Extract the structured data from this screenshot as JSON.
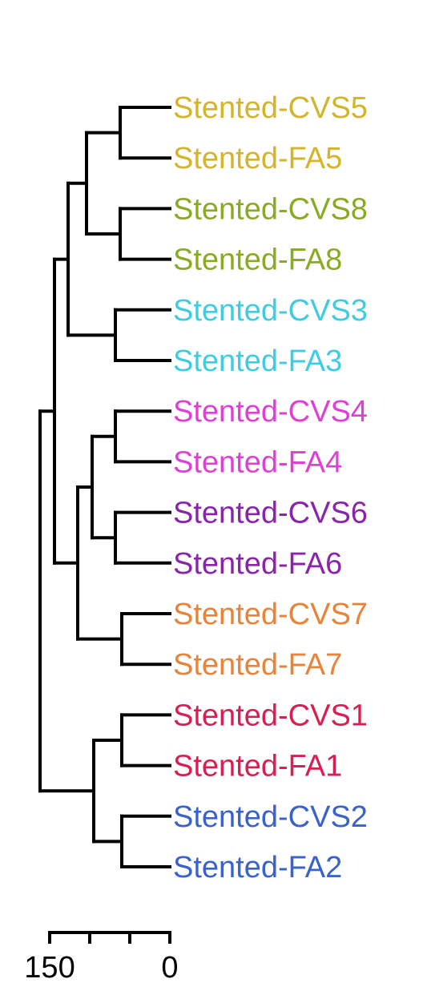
{
  "leaves": [
    {
      "label": "Stented-CVS5",
      "color": "#d4b42a"
    },
    {
      "label": "Stented-FA5",
      "color": "#d4b42a"
    },
    {
      "label": "Stented-CVS8",
      "color": "#8aaa24"
    },
    {
      "label": "Stented-FA8",
      "color": "#8aaa24"
    },
    {
      "label": "Stented-CVS3",
      "color": "#3fcce2"
    },
    {
      "label": "Stented-FA3",
      "color": "#3fcce2"
    },
    {
      "label": "Stented-CVS4",
      "color": "#e03fd6"
    },
    {
      "label": "Stented-FA4",
      "color": "#e03fd6"
    },
    {
      "label": "Stented-CVS6",
      "color": "#8a24a8"
    },
    {
      "label": "Stented-FA6",
      "color": "#8a24a8"
    },
    {
      "label": "Stented-CVS7",
      "color": "#e8843a"
    },
    {
      "label": "Stented-FA7",
      "color": "#e8843a"
    },
    {
      "label": "Stented-CVS1",
      "color": "#d81e52"
    },
    {
      "label": "Stented-FA1",
      "color": "#d81e52"
    },
    {
      "label": "Stented-CVS2",
      "color": "#3a62cc"
    },
    {
      "label": "Stented-FA2",
      "color": "#3a62cc"
    }
  ],
  "merges": [
    {
      "a": "L0",
      "b": "L1",
      "height": 62
    },
    {
      "a": "L2",
      "b": "L3",
      "height": 62
    },
    {
      "a": "L4",
      "b": "L5",
      "height": 68
    },
    {
      "a": "L6",
      "b": "L7",
      "height": 68
    },
    {
      "a": "L8",
      "b": "L9",
      "height": 68
    },
    {
      "a": "L10",
      "b": "L11",
      "height": 60
    },
    {
      "a": "L12",
      "b": "L13",
      "height": 60
    },
    {
      "a": "L14",
      "b": "L15",
      "height": 60
    },
    {
      "a": "N0",
      "b": "N1",
      "height": 104
    },
    {
      "a": "N3",
      "b": "N4",
      "height": 97
    },
    {
      "a": "N6",
      "b": "N7",
      "height": 95
    },
    {
      "a": "N8",
      "b": "N2",
      "height": 127
    },
    {
      "a": "N9",
      "b": "N5",
      "height": 115
    },
    {
      "a": "N11",
      "b": "N12",
      "height": 144
    },
    {
      "a": "N13",
      "b": "N10",
      "height": 162
    }
  ],
  "scale_bar": {
    "max": 150,
    "ticks": [
      150,
      100,
      50,
      0
    ],
    "labels": [
      {
        "value": 150,
        "text": "150"
      },
      {
        "value": 0,
        "text": "0"
      }
    ]
  }
}
